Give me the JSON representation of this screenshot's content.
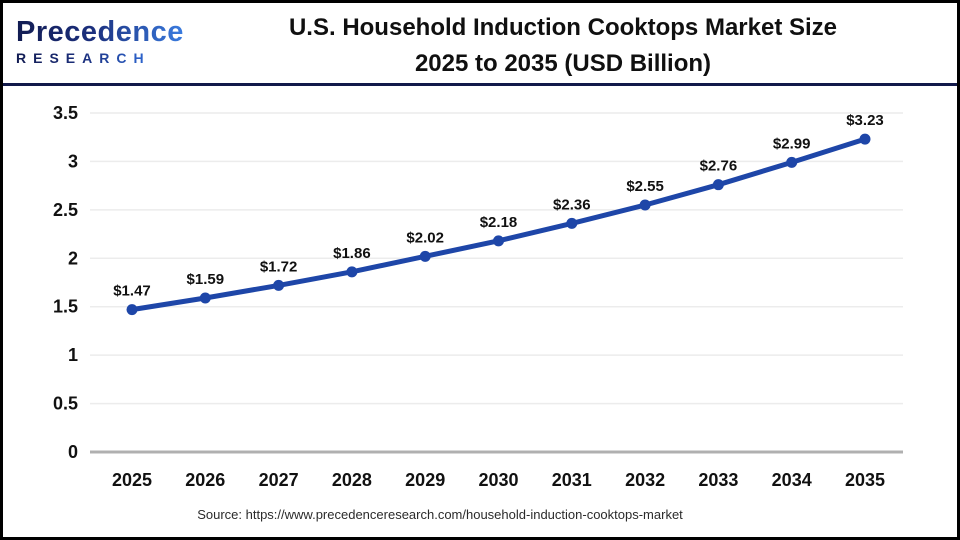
{
  "header": {
    "logo": {
      "line1": "Precedence",
      "line2": "RESEARCH"
    },
    "title_line1": "U.S. Household Induction Cooktops Market Size",
    "title_line2": "2025 to 2035 (USD Billion)"
  },
  "footer": {
    "source": "Source: https://www.precedenceresearch.com/household-induction-cooktops-market"
  },
  "colors": {
    "line": "#1e46a8",
    "marker": "#1e46a8",
    "grid": "#ececec",
    "axis_baseline": "#b0b0b0",
    "divider": "#12194a",
    "title_text": "#101010",
    "logo_dark": "#121c52",
    "logo_light": "#3a7ce0"
  },
  "chart_data": {
    "type": "line",
    "title": "U.S. Household Induction Cooktops Market Size 2025 to 2035 (USD Billion)",
    "xlabel": "",
    "ylabel": "",
    "categories": [
      "2025",
      "2026",
      "2027",
      "2028",
      "2029",
      "2030",
      "2031",
      "2032",
      "2033",
      "2034",
      "2035"
    ],
    "series": [
      {
        "name": "U.S. Household Induction Cooktops Market Size (USD Billion)",
        "values": [
          1.47,
          1.59,
          1.72,
          1.86,
          2.02,
          2.18,
          2.36,
          2.55,
          2.76,
          2.99,
          3.23
        ],
        "labels": [
          "$1.47",
          "$1.59",
          "$1.72",
          "$1.86",
          "$2.02",
          "$2.18",
          "$2.36",
          "$2.55",
          "$2.76",
          "$2.99",
          "$3.23"
        ]
      }
    ],
    "ylim": [
      0,
      3.5
    ],
    "y_ticks": [
      "0",
      "0.5",
      "1",
      "1.5",
      "2",
      "2.5",
      "3",
      "3.5"
    ],
    "grid": true,
    "legend_position": "none",
    "marker": "circle"
  }
}
